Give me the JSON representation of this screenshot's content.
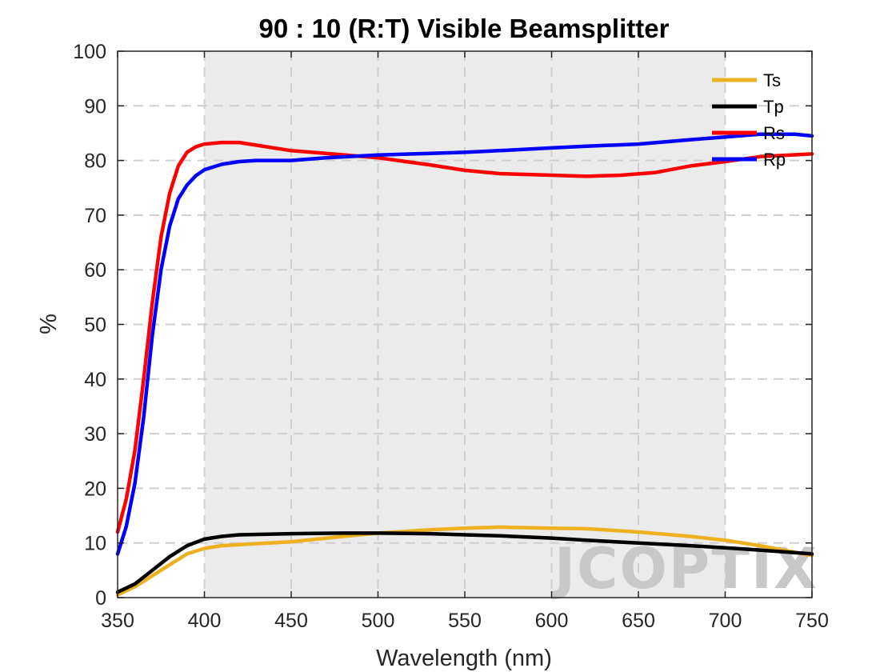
{
  "chart_data": {
    "type": "line",
    "title": "90 : 10 (R:T) Visible Beamsplitter",
    "xlabel": "Wavelength (nm)",
    "ylabel": "%",
    "xlim": [
      350,
      750
    ],
    "ylim": [
      0,
      100
    ],
    "xticks": [
      "350",
      "400",
      "450",
      "500",
      "550",
      "600",
      "650",
      "700",
      "750"
    ],
    "yticks": [
      "0",
      "10",
      "20",
      "30",
      "40",
      "50",
      "60",
      "70",
      "80",
      "90",
      "100"
    ],
    "grid": true,
    "shaded_band": [
      400,
      700
    ],
    "legend_position": "top-right",
    "watermark": "JCOPTIX",
    "series": [
      {
        "name": "Ts",
        "color": "#EDB120",
        "x": [
          350,
          360,
          370,
          380,
          390,
          400,
          410,
          420,
          450,
          480,
          500,
          530,
          550,
          570,
          600,
          620,
          650,
          680,
          700,
          720,
          750
        ],
        "y": [
          0.5,
          2,
          4,
          6,
          8,
          9,
          9.5,
          9.7,
          10.2,
          11.2,
          11.8,
          12.4,
          12.7,
          12.9,
          12.7,
          12.6,
          12,
          11.2,
          10.5,
          9.5,
          7.7
        ]
      },
      {
        "name": "Tp",
        "color": "#000000",
        "x": [
          350,
          360,
          370,
          380,
          390,
          400,
          410,
          420,
          450,
          480,
          500,
          530,
          550,
          570,
          600,
          620,
          650,
          680,
          700,
          720,
          750
        ],
        "y": [
          1,
          2.5,
          5,
          7.5,
          9.5,
          10.7,
          11.2,
          11.5,
          11.7,
          11.8,
          11.8,
          11.7,
          11.5,
          11.3,
          10.9,
          10.5,
          10,
          9.5,
          9.1,
          8.7,
          8
        ]
      },
      {
        "name": "Rs",
        "color": "#FF0000",
        "x": [
          350,
          355,
          360,
          365,
          370,
          375,
          380,
          385,
          390,
          395,
          400,
          410,
          420,
          430,
          450,
          470,
          500,
          530,
          550,
          570,
          600,
          620,
          640,
          660,
          680,
          700,
          720,
          750
        ],
        "y": [
          12,
          18,
          27,
          40,
          54,
          66,
          74,
          79,
          81.5,
          82.5,
          83,
          83.3,
          83.3,
          82.8,
          81.8,
          81.3,
          80.5,
          79.2,
          78.2,
          77.6,
          77.3,
          77.1,
          77.3,
          77.8,
          79,
          79.8,
          80.7,
          81.2
        ]
      },
      {
        "name": "Rp",
        "color": "#0000FF",
        "x": [
          350,
          355,
          360,
          365,
          370,
          375,
          380,
          385,
          390,
          395,
          400,
          410,
          420,
          430,
          450,
          470,
          500,
          530,
          550,
          570,
          600,
          620,
          650,
          680,
          700,
          720,
          740,
          750
        ],
        "y": [
          8,
          13,
          21,
          33,
          48,
          60,
          68,
          73,
          75.5,
          77.2,
          78.3,
          79.3,
          79.8,
          80,
          80,
          80.5,
          81,
          81.3,
          81.5,
          81.8,
          82.3,
          82.6,
          83,
          83.8,
          84.3,
          84.8,
          84.8,
          84.5
        ]
      }
    ]
  }
}
